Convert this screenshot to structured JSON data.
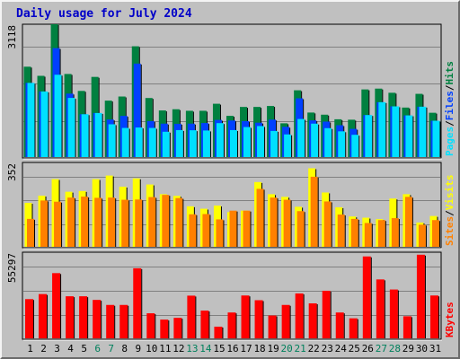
{
  "title": "Daily usage for July 2024",
  "colors": {
    "hits": "#008040",
    "files": "#0040ff",
    "pages": "#00e0ff",
    "visits": "#ffff00",
    "sites": "#ff8000",
    "kbytes": "#ff0000",
    "weekend_label": "#00805c",
    "weekday_label": "#000000",
    "background": "#c0c0c0"
  },
  "chart_data": [
    {
      "type": "bar",
      "title": "Daily usage for July 2024",
      "panel": "hits_files_pages",
      "right_label_parts": [
        "Pages",
        "/",
        "Files",
        "/",
        "Hits"
      ],
      "y_max_label": "3118",
      "ylim": [
        0,
        3118
      ],
      "categories": [
        "1",
        "2",
        "3",
        "4",
        "5",
        "6",
        "7",
        "8",
        "9",
        "10",
        "11",
        "12",
        "13",
        "14",
        "15",
        "16",
        "17",
        "18",
        "19",
        "20",
        "21",
        "22",
        "23",
        "24",
        "25",
        "26",
        "27",
        "28",
        "29",
        "30",
        "31"
      ],
      "weekend_days": [
        "6",
        "7",
        "13",
        "14",
        "20",
        "21",
        "27",
        "28"
      ],
      "series": [
        {
          "name": "Hits",
          "key": "hits",
          "values": [
            2128,
            1915,
            3118,
            1958,
            1563,
            1890,
            1337,
            1433,
            2604,
            1398,
            1108,
            1136,
            1100,
            1100,
            1264,
            982,
            1190,
            1190,
            1212,
            808,
            1578,
            1059,
            1009,
            902,
            892,
            1598,
            1617,
            1520,
            1175,
            1495,
            1054
          ]
        },
        {
          "name": "Files",
          "key": "files",
          "values": [
            1750,
            1550,
            2561,
            1500,
            1019,
            1048,
            896,
            981,
            2200,
            859,
            800,
            796,
            800,
            814,
            887,
            874,
            860,
            822,
            894,
            725,
            1391,
            877,
            848,
            763,
            678,
            1000,
            1300,
            1203,
            992,
            1195,
            868
          ]
        },
        {
          "name": "Pages",
          "key": "pages",
          "values": [
            1750,
            1550,
            1940,
            1400,
            1019,
            1048,
            785,
            700,
            710,
            700,
            611,
            650,
            646,
            640,
            812,
            650,
            721,
            744,
            630,
            549,
            908,
            800,
            695,
            621,
            540,
            1000,
            1300,
            1203,
            992,
            1195,
            868
          ]
        }
      ]
    },
    {
      "type": "bar",
      "panel": "visits_sites",
      "right_label_parts": [
        "Sites",
        "/",
        "Visits"
      ],
      "y_max_label": "352",
      "ylim": [
        0,
        352
      ],
      "series": [
        {
          "name": "Visits",
          "key": "visits",
          "values": [
            185,
            215,
            283,
            231,
            234,
            283,
            298,
            252,
            286,
            261,
            221,
            214,
            171,
            161,
            174,
            147,
            153,
            271,
            221,
            210,
            169,
            328,
            228,
            167,
            129,
            124,
            118,
            203,
            221,
            104,
            131
          ]
        },
        {
          "name": "Sites",
          "key": "sites",
          "values": [
            119,
            195,
            190,
            207,
            211,
            206,
            207,
            198,
            199,
            209,
            218,
            205,
            138,
            139,
            117,
            153,
            153,
            243,
            207,
            198,
            151,
            293,
            191,
            137,
            119,
            102,
            114,
            122,
            210,
            95,
            114
          ]
        }
      ]
    },
    {
      "type": "bar",
      "panel": "kbytes",
      "right_label_parts": [
        "KBytes"
      ],
      "y_max_label": "55297",
      "ylim": [
        0,
        55297
      ],
      "series": [
        {
          "name": "KBytes",
          "key": "kbytes",
          "values": [
            25500,
            28700,
            42000,
            27300,
            27300,
            25000,
            21800,
            21800,
            45100,
            16500,
            12500,
            13600,
            27700,
            18200,
            8000,
            17000,
            27800,
            24800,
            15100,
            21800,
            29100,
            22800,
            30800,
            17000,
            13300,
            52600,
            38000,
            31600,
            14600,
            53700,
            27800
          ]
        }
      ]
    }
  ]
}
